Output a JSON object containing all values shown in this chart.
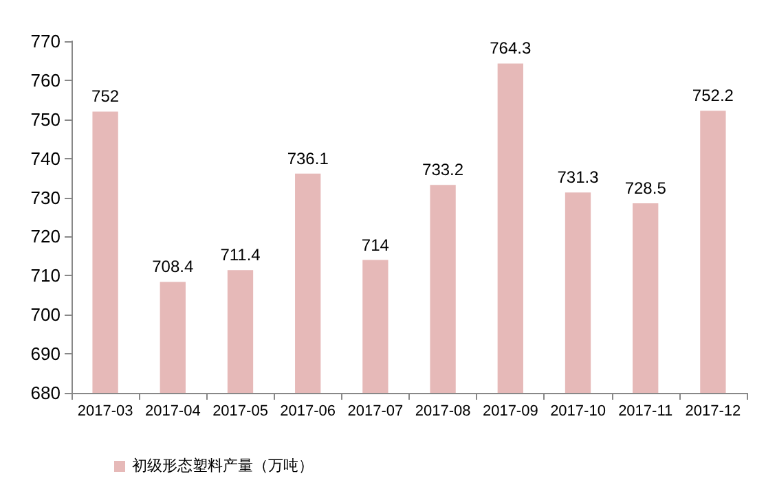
{
  "chart_data": {
    "type": "bar",
    "categories": [
      "2017-03",
      "2017-04",
      "2017-05",
      "2017-06",
      "2017-07",
      "2017-08",
      "2017-09",
      "2017-10",
      "2017-11",
      "2017-12"
    ],
    "series": [
      {
        "name": "初级形态塑料产量（万吨）",
        "color": "#e6b9b8",
        "values": [
          752,
          708.4,
          711.4,
          736.1,
          714,
          733.2,
          764.3,
          731.3,
          728.5,
          752.2
        ]
      }
    ],
    "ylim": [
      680,
      770
    ],
    "yticks": [
      680,
      690,
      700,
      710,
      720,
      730,
      740,
      750,
      760,
      770
    ],
    "grid": false,
    "legend": "bottom left",
    "data_labels": true
  }
}
